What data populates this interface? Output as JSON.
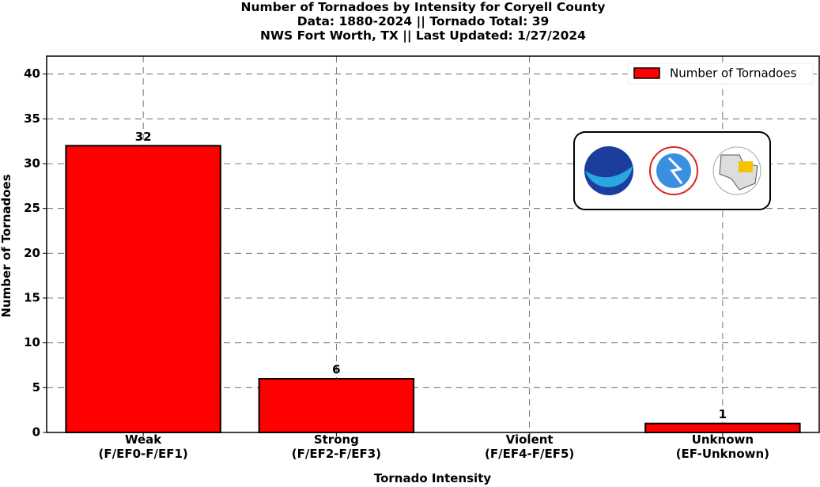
{
  "chart_data": {
    "type": "bar",
    "title": "Number of Tornadoes by Intensity for Coryell County\nData: 1880-2024 || Tornado Total: 39\nNWS Fort Worth, TX || Last Updated: 1/27/2024",
    "xlabel": "Tornado Intensity",
    "ylabel": "Number of Tornadoes",
    "categories": [
      "Weak\n(F/EF0-F/EF1)",
      "Strong\n(F/EF2-F/EF3)",
      "Violent\n(F/EF4-F/EF5)",
      "Unknown\n(EF-Unknown)"
    ],
    "series": [
      {
        "name": "Number of Tornadoes",
        "color": "#ff0000",
        "values": [
          32,
          6,
          0,
          1
        ]
      }
    ],
    "ylim": [
      0,
      42
    ],
    "yticks": [
      0,
      5,
      10,
      15,
      20,
      25,
      30,
      35,
      40
    ],
    "grid": true,
    "legend": "upper right"
  }
}
